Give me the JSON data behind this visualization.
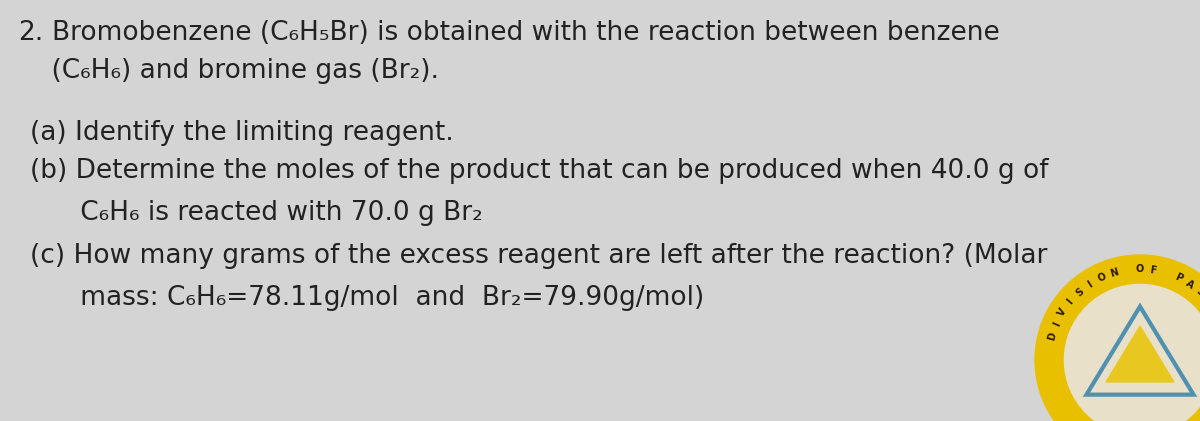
{
  "bg_color": "#d4d4d4",
  "text_color": "#222222",
  "fig_width": 12.0,
  "fig_height": 4.21,
  "dpi": 100,
  "line1_num": "2.",
  "line1_text": "Bromobenzene (C₆H₅Br) is obtained with the reaction between benzene",
  "line2": "    (C₆H₆) and bromine gas (Br₂).",
  "line_a": "(a) Identify the limiting reagent.",
  "line_b1": "(b) Determine the moles of the product that can be produced when 40.0 g of",
  "line_b2": "      C₆H₆ is reacted with 70.0 g Br₂",
  "line_c1": "(c) How many grams of the excess reagent are left after the reaction? (Molar",
  "line_c2": "      mass: C₆H₆=78.11g/mol  and  Br₂=79.90g/mol)",
  "main_fontsize": 19.0,
  "logo_gold": "#e8c000",
  "logo_white": "#e8e0c8",
  "logo_blue": "#5090b0",
  "logo_yellow_tri": "#e8c820",
  "logo_dark": "#2a1800"
}
